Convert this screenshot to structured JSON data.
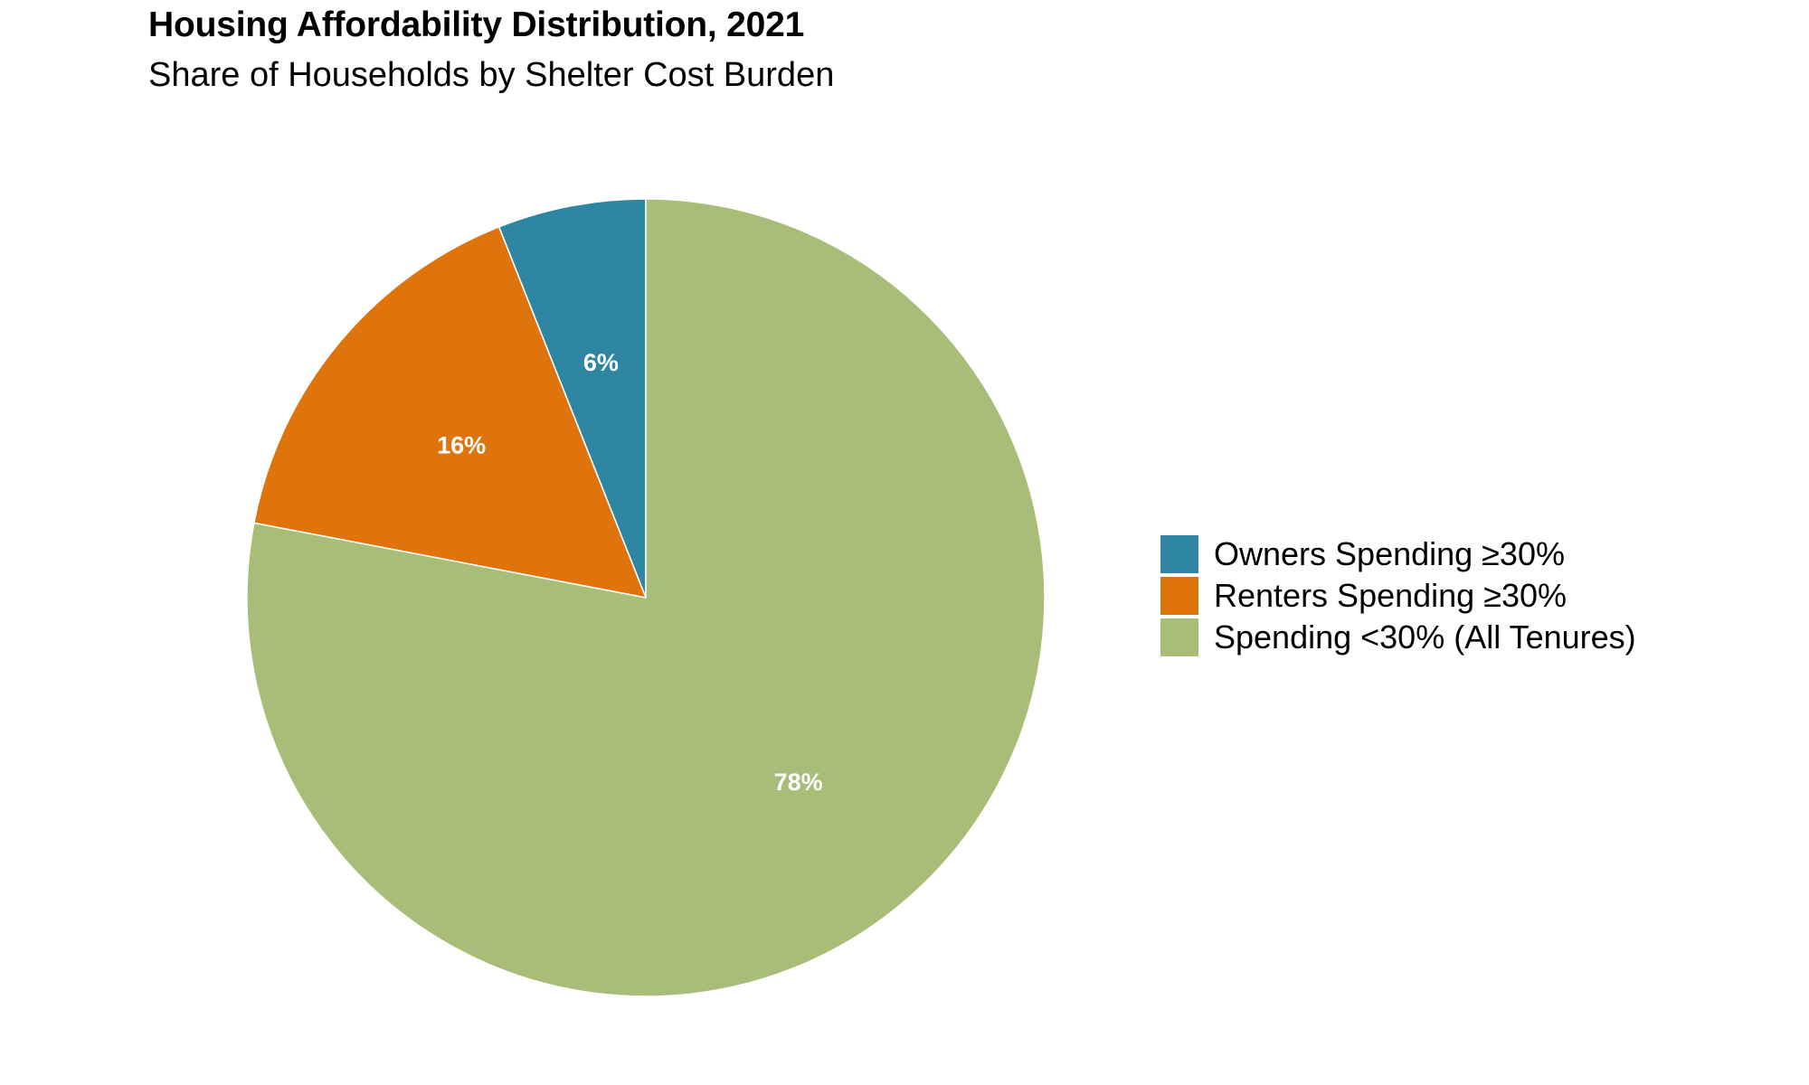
{
  "chart_data": {
    "type": "pie",
    "title": "Housing Affordability Distribution, 2021",
    "subtitle": "Share of Households by Shelter Cost Burden",
    "slices": [
      {
        "name": "Owners Spending ≥30%",
        "value": 6,
        "label": "6%",
        "color": "#2E86A3"
      },
      {
        "name": "Renters Spending ≥30%",
        "value": 16,
        "label": "16%",
        "color": "#E0740C"
      },
      {
        "name": "Spending <30% (All Tenures)",
        "value": 78,
        "label": "78%",
        "color": "#A8BD77"
      }
    ],
    "start_angle": "top",
    "direction": "counterclockwise",
    "legend_position": "right"
  }
}
